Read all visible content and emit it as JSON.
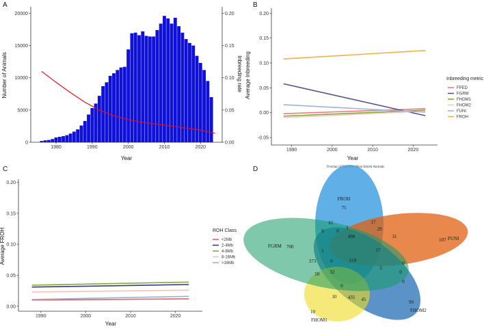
{
  "panels": {
    "a_letter": "A",
    "b_letter": "B",
    "c_letter": "C",
    "d_letter": "D"
  },
  "chart_data": [
    {
      "id": "A",
      "type": "bar",
      "xlabel": "Year",
      "ylabel": "Number of Animals",
      "y2label": "Inbreeding rate",
      "xticks": [
        1980,
        1990,
        2000,
        2010,
        2020
      ],
      "yticks": [
        0,
        5000,
        10000,
        15000,
        20000
      ],
      "y2ticks": [
        "0.00",
        "0.05",
        "0.10",
        "0.15",
        "0.20"
      ],
      "xlim": [
        1973,
        2026
      ],
      "ylim": [
        0,
        21000
      ],
      "y2lim": [
        0,
        0.21
      ],
      "bar_color": "#1010dd",
      "line_color": "#e01010",
      "years": [
        1976,
        1977,
        1978,
        1979,
        1980,
        1981,
        1982,
        1983,
        1984,
        1985,
        1986,
        1987,
        1988,
        1989,
        1990,
        1991,
        1992,
        1993,
        1994,
        1995,
        1996,
        1997,
        1998,
        1999,
        2000,
        2001,
        2002,
        2003,
        2004,
        2005,
        2006,
        2007,
        2008,
        2009,
        2010,
        2011,
        2012,
        2013,
        2014,
        2015,
        2016,
        2017,
        2018,
        2019,
        2020,
        2021,
        2022,
        2023
      ],
      "values": [
        200,
        300,
        350,
        500,
        750,
        850,
        950,
        1100,
        1350,
        1650,
        2000,
        2600,
        3300,
        4300,
        5300,
        6000,
        7200,
        8700,
        9300,
        10300,
        10700,
        11200,
        11600,
        11700,
        14400,
        16900,
        17000,
        16600,
        17200,
        16500,
        16400,
        16400,
        17400,
        18400,
        19600,
        19200,
        18400,
        19300,
        18000,
        17000,
        16000,
        15400,
        15000,
        13400,
        12300,
        11200,
        9500,
        7000
      ],
      "rate_line": [
        [
          1976,
          0.11
        ],
        [
          1980,
          0.093
        ],
        [
          1984,
          0.077
        ],
        [
          1988,
          0.062
        ],
        [
          1992,
          0.05
        ],
        [
          1996,
          0.041
        ],
        [
          2000,
          0.035
        ],
        [
          2004,
          0.031
        ],
        [
          2008,
          0.028
        ],
        [
          2012,
          0.025
        ],
        [
          2016,
          0.022
        ],
        [
          2020,
          0.019
        ],
        [
          2024,
          0.014
        ]
      ]
    },
    {
      "id": "B",
      "type": "line",
      "xlabel": "Year",
      "ylabel": "Average Inbreeding",
      "xticks": [
        1990,
        2000,
        2010,
        2020
      ],
      "yticks": [
        "-0.05",
        "0.00",
        "0.05",
        "0.10",
        "0.15",
        "0.20"
      ],
      "xlim": [
        1985,
        2026
      ],
      "ylim": [
        -0.065,
        0.21
      ],
      "legend_title": "Inbreeding metric",
      "legend_position": "right",
      "series": [
        {
          "name": "FPED",
          "color": "#f07878",
          "values": [
            [
              1988,
              -0.002
            ],
            [
              2023,
              0.008
            ]
          ]
        },
        {
          "name": "FGRM",
          "color": "#5a4f8a",
          "values": [
            [
              1988,
              0.058
            ],
            [
              2023,
              -0.006
            ]
          ]
        },
        {
          "name": "FHOM1",
          "color": "#84a832",
          "values": [
            [
              1988,
              -0.007
            ],
            [
              2023,
              0.005
            ]
          ]
        },
        {
          "name": "FHOM2",
          "color": "#f3c7c2",
          "values": [
            [
              1988,
              -0.01
            ],
            [
              2023,
              0.003
            ]
          ]
        },
        {
          "name": "FUNI",
          "color": "#9fb2d8",
          "values": [
            [
              1988,
              0.016
            ],
            [
              2023,
              0.001
            ]
          ]
        },
        {
          "name": "FROH",
          "color": "#f5ae4a",
          "values": [
            [
              1988,
              0.108
            ],
            [
              2023,
              0.125
            ]
          ]
        }
      ]
    },
    {
      "id": "C",
      "type": "line",
      "xlabel": "Year",
      "ylabel": "Average FROH",
      "xticks": [
        1990,
        2000,
        2010,
        2020
      ],
      "yticks": [
        "0.00",
        "0.05",
        "0.10",
        "0.15",
        "0.20"
      ],
      "xlim": [
        1985,
        2026
      ],
      "ylim": [
        -0.008,
        0.205
      ],
      "legend_title": "ROH Class",
      "legend_position": "right",
      "series": [
        {
          "name": "<2Mb",
          "color": "#e86060",
          "values": [
            [
              1988,
              0.01
            ],
            [
              2023,
              0.012
            ]
          ]
        },
        {
          "name": "2-4Mb",
          "color": "#3c3a7a",
          "values": [
            [
              1988,
              0.031
            ],
            [
              2023,
              0.035
            ]
          ]
        },
        {
          "name": "4-8Mb",
          "color": "#86a83c",
          "values": [
            [
              1988,
              0.034
            ],
            [
              2023,
              0.039
            ]
          ]
        },
        {
          "name": "8-16Mb",
          "color": "#f2c2bc",
          "values": [
            [
              1988,
              0.023
            ],
            [
              2023,
              0.026
            ]
          ]
        },
        {
          "name": ">16Mb",
          "color": "#9aaed6",
          "values": [
            [
              1988,
              0.011
            ],
            [
              2023,
              0.016
            ]
          ]
        }
      ]
    },
    {
      "id": "D",
      "type": "venn",
      "title": "Overlap of Top 10% Most Inbred Animals",
      "sets": [
        {
          "name": "FROH",
          "color": "#3d9ee0",
          "unique": "75"
        },
        {
          "name": "FUNI",
          "color": "#e06010",
          "unique": "107"
        },
        {
          "name": "FHOM2",
          "color": "#1565b0",
          "unique": "99"
        },
        {
          "name": "FHOM1",
          "color": "#eedc20",
          "unique": "10"
        },
        {
          "name": "FGRM",
          "color": "#169a66",
          "unique": "700"
        }
      ],
      "region_labels": [
        "61",
        "17",
        "0",
        "0",
        "1",
        "498",
        "29",
        "31",
        "17",
        "373",
        "1",
        "219",
        "0",
        "50",
        "32",
        "3",
        "0",
        "0",
        "0",
        "0",
        "10",
        "435",
        "45"
      ]
    }
  ]
}
